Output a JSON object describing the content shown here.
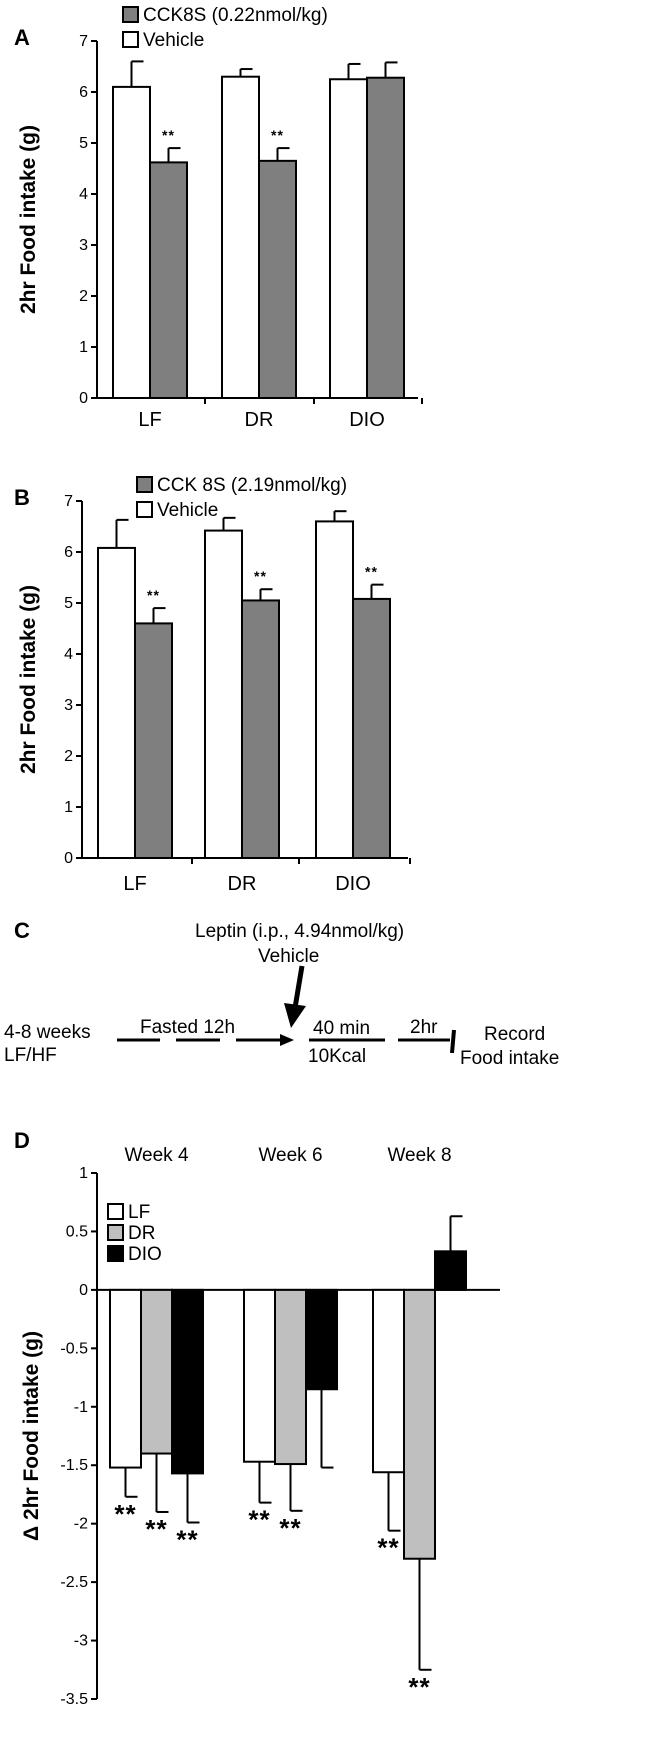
{
  "chart_data": [
    {
      "panel": "A",
      "type": "bar",
      "ylabel": "2hr Food intake (g)",
      "ylim": [
        0,
        7
      ],
      "yticks": [
        "0",
        "1",
        "2",
        "3",
        "4",
        "5",
        "6",
        "7"
      ],
      "categories": [
        "LF",
        "DR",
        "DIO"
      ],
      "series": [
        {
          "name": "Vehicle",
          "values": [
            6.1,
            6.3,
            6.25
          ],
          "errors": [
            0.5,
            0.15,
            0.3
          ],
          "color": "#ffffff"
        },
        {
          "name": "CCK8S (0.22nmol/kg)",
          "values": [
            4.62,
            4.65,
            6.28
          ],
          "errors": [
            0.28,
            0.25,
            0.3
          ],
          "color": "#7f7f7f"
        }
      ],
      "annotations": [
        {
          "category": "LF",
          "series": 1,
          "text": "**"
        },
        {
          "category": "DR",
          "series": 1,
          "text": "**"
        }
      ],
      "legend_order": [
        1,
        0
      ]
    },
    {
      "panel": "B",
      "type": "bar",
      "ylabel": "2hr Food intake (g)",
      "ylim": [
        0,
        7
      ],
      "yticks": [
        "0",
        "1",
        "2",
        "3",
        "4",
        "5",
        "6",
        "7"
      ],
      "categories": [
        "LF",
        "DR",
        "DIO"
      ],
      "series": [
        {
          "name": "Vehicle",
          "values": [
            6.08,
            6.42,
            6.6
          ],
          "errors": [
            0.55,
            0.25,
            0.2
          ],
          "color": "#ffffff"
        },
        {
          "name": "CCK 8S (2.19nmol/kg)",
          "values": [
            4.6,
            5.05,
            5.08
          ],
          "errors": [
            0.3,
            0.22,
            0.28
          ],
          "color": "#7f7f7f"
        }
      ],
      "annotations": [
        {
          "category": "LF",
          "series": 1,
          "text": "**"
        },
        {
          "category": "DR",
          "series": 1,
          "text": "**"
        },
        {
          "category": "DIO",
          "series": 1,
          "text": "**"
        }
      ],
      "legend_order": [
        1,
        0
      ]
    },
    {
      "panel": "D",
      "type": "bar",
      "ylabel": "Δ 2hr Food intake (g)",
      "ylim": [
        -3.5,
        1
      ],
      "yticks": [
        "-3.5",
        "-3",
        "-2.5",
        "-2",
        "-1.5",
        "-1",
        "-0.5",
        "0",
        "0.5",
        "1"
      ],
      "categories": [
        "Week 4",
        "Week 6",
        "Week 8"
      ],
      "series": [
        {
          "name": "LF",
          "values": [
            -1.52,
            -1.47,
            -1.56
          ],
          "errors": [
            0.25,
            0.35,
            0.5
          ],
          "color": "#ffffff"
        },
        {
          "name": "DR",
          "values": [
            -1.4,
            -1.49,
            -2.3
          ],
          "errors": [
            0.5,
            0.4,
            0.95
          ],
          "color": "#bfbfbf"
        },
        {
          "name": "DIO",
          "values": [
            -1.57,
            -0.85,
            0.33
          ],
          "errors": [
            0.42,
            0.67,
            0.3
          ],
          "color": "#000000"
        }
      ],
      "annotations": [
        {
          "category": "Week 4",
          "series": 0,
          "text": "**"
        },
        {
          "category": "Week 4",
          "series": 1,
          "text": "**"
        },
        {
          "category": "Week 4",
          "series": 2,
          "text": "**"
        },
        {
          "category": "Week 6",
          "series": 0,
          "text": "**"
        },
        {
          "category": "Week 6",
          "series": 1,
          "text": "**"
        },
        {
          "category": "Week 8",
          "series": 0,
          "text": "**"
        },
        {
          "category": "Week 8",
          "series": 1,
          "text": "**"
        }
      ],
      "legend_order": [
        0,
        1,
        2
      ]
    }
  ],
  "diagram_c": {
    "panel": "C",
    "treatment": "Leptin (i.p., 4.94nmol/kg)",
    "control": "Vehicle",
    "diet_duration": "4-8 weeks",
    "diet": "LF/HF",
    "fasting": "Fasted 12h",
    "interval": "40 min",
    "meal": "10Kcal",
    "period": "2hr",
    "outcome_line1": "Record",
    "outcome_line2": "Food intake"
  }
}
